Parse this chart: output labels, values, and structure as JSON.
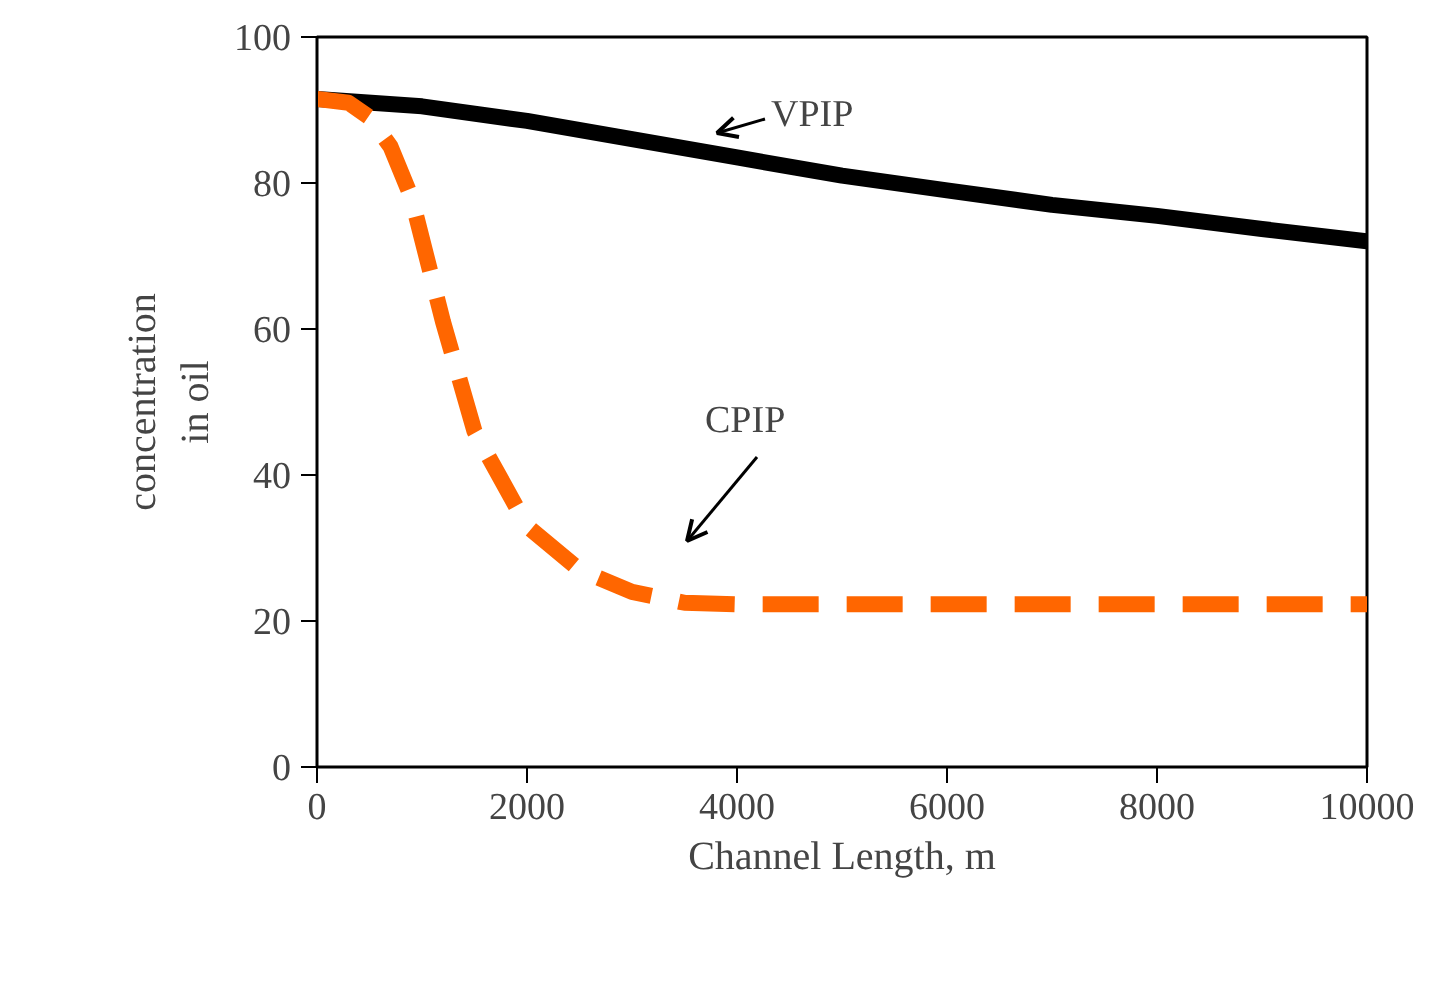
{
  "chart_data": {
    "type": "line",
    "xlabel": "Channel Length, m",
    "ylabel": "concentration\nin oil",
    "xlim": [
      0,
      10000
    ],
    "xticks": [
      0,
      2000,
      4000,
      6000,
      8000,
      10000
    ],
    "ylim": [
      0,
      100
    ],
    "yticks": [
      0,
      20,
      40,
      60,
      80,
      100
    ],
    "grid": false,
    "marker": "none",
    "series": [
      {
        "color": "#000000",
        "line_style": "solid",
        "x": [
          0,
          1000,
          2000,
          3000,
          4000,
          5000,
          6000,
          7000,
          8000,
          9000,
          10000
        ],
        "values": [
          91.5,
          90.5,
          88.5,
          86,
          83.5,
          81,
          79,
          77,
          75.5,
          73.7,
          72
        ]
      },
      {
        "color": "#ff6600",
        "line_style": "dashed",
        "x": [
          0,
          300,
          500,
          700,
          900,
          1200,
          1500,
          2000,
          2500,
          3000,
          3500,
          4000,
          10000
        ],
        "values": [
          91.5,
          91,
          89,
          85,
          78,
          61,
          46,
          33,
          27,
          24,
          22.5,
          22.3,
          22.3
        ]
      }
    ],
    "annotations": [
      "VPIP",
      "CPIP"
    ]
  }
}
